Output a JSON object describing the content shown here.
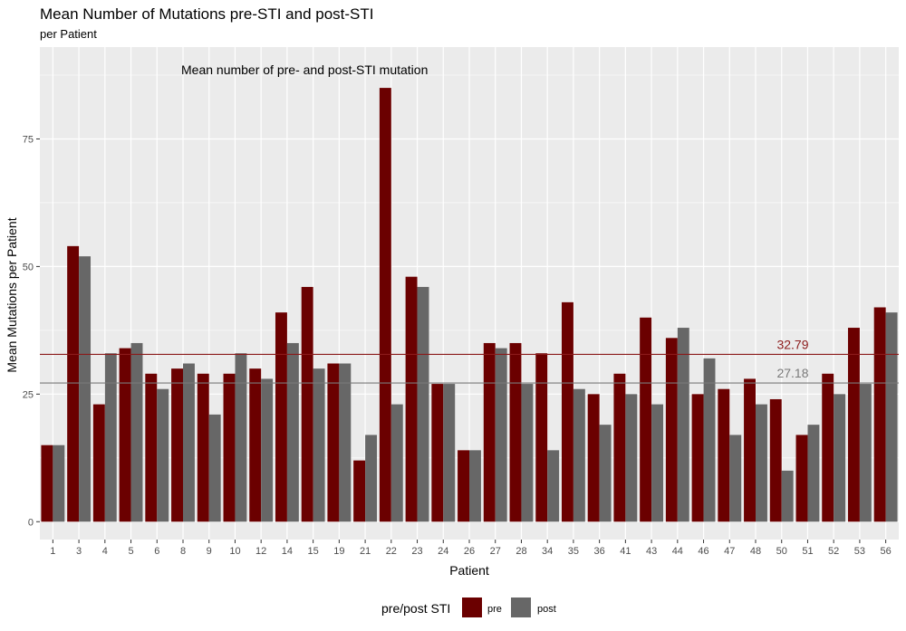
{
  "chart_data": {
    "type": "bar",
    "title": "Mean Number of Mutations pre-STI and post-STI",
    "subtitle": "per Patient",
    "xlabel": "Patient",
    "ylabel": "Mean Mutations per Patient",
    "annotation": "Mean number of pre- and post-STI mutation",
    "ylim": [
      -3.5,
      93
    ],
    "yticks": [
      0,
      25,
      50,
      75
    ],
    "categories": [
      "1",
      "3",
      "4",
      "5",
      "6",
      "8",
      "9",
      "10",
      "12",
      "14",
      "15",
      "19",
      "21",
      "22",
      "23",
      "24",
      "26",
      "27",
      "28",
      "34",
      "35",
      "36",
      "41",
      "43",
      "44",
      "46",
      "47",
      "48",
      "50",
      "51",
      "52",
      "53",
      "56"
    ],
    "series": [
      {
        "name": "pre",
        "color": "#6b0000",
        "values": [
          15,
          54,
          23,
          34,
          29,
          30,
          29,
          29,
          30,
          41,
          46,
          31,
          12,
          85,
          48,
          27,
          14,
          35,
          35,
          33,
          43,
          25,
          29,
          40,
          36,
          25,
          26,
          28,
          24,
          17,
          29,
          38,
          42
        ]
      },
      {
        "name": "post",
        "color": "#676767",
        "values": [
          15,
          52,
          33,
          35,
          26,
          31,
          21,
          33,
          28,
          35,
          30,
          31,
          17,
          23,
          46,
          27,
          14,
          34,
          27,
          14,
          26,
          19,
          25,
          23,
          38,
          32,
          17,
          23,
          10,
          19,
          25,
          27,
          41
        ]
      }
    ],
    "reference_lines": [
      {
        "value": 32.79,
        "label": "32.79",
        "color": "#8b1a1a"
      },
      {
        "value": 27.18,
        "label": "27.18",
        "color": "#7a7a7a"
      }
    ],
    "legend": {
      "title": "pre/post STI",
      "position": "bottom",
      "entries": [
        "pre",
        "post"
      ]
    },
    "grid": true
  }
}
